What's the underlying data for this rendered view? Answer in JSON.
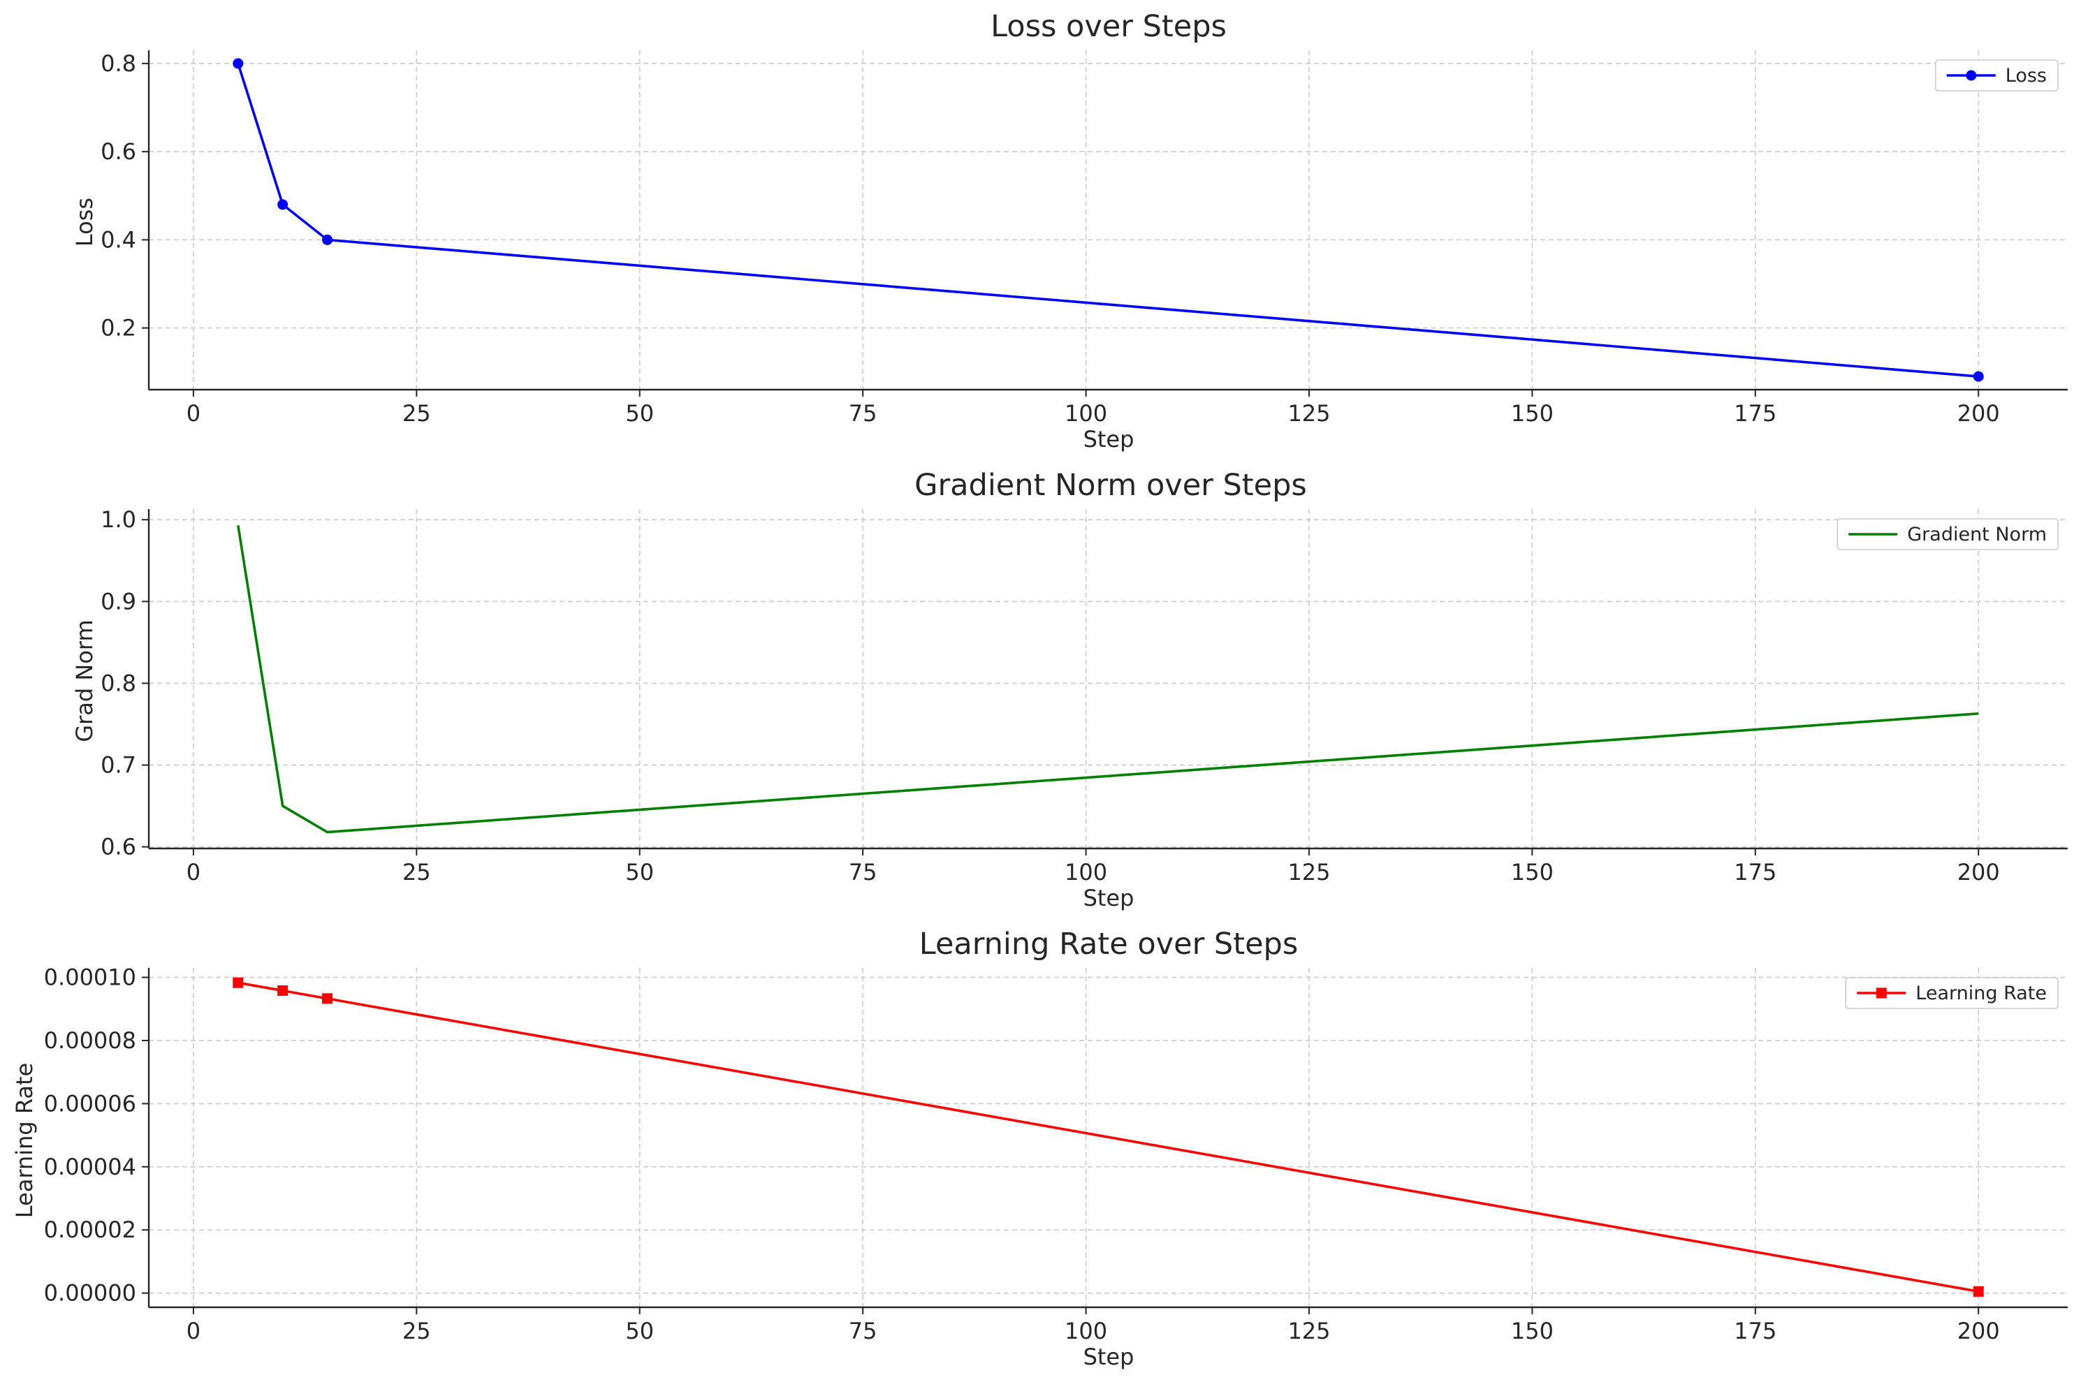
{
  "chart_data": [
    {
      "type": "line",
      "title": "Loss over Steps",
      "xlabel": "Step",
      "ylabel": "Loss",
      "xlim": [
        -5,
        210
      ],
      "ylim": [
        0.06,
        0.83
      ],
      "xticks": [
        0,
        25,
        50,
        75,
        100,
        125,
        150,
        175,
        200
      ],
      "xtick_labels": [
        "0",
        "25",
        "50",
        "75",
        "100",
        "125",
        "150",
        "175",
        "200"
      ],
      "yticks": [
        0.2,
        0.4,
        0.6,
        0.8
      ],
      "ytick_labels": [
        "0.2",
        "0.4",
        "0.6",
        "0.8"
      ],
      "grid": true,
      "legend_position": "top-right",
      "series": [
        {
          "name": "Loss",
          "color": "#0000ff",
          "marker": "circle",
          "x": [
            5,
            10,
            15,
            200
          ],
          "y": [
            0.8,
            0.48,
            0.4,
            0.09
          ]
        }
      ]
    },
    {
      "type": "line",
      "title": "Gradient Norm over Steps",
      "xlabel": "Step",
      "ylabel": "Grad Norm",
      "xlim": [
        -5,
        210
      ],
      "ylim": [
        0.598,
        1.013
      ],
      "xticks": [
        0,
        25,
        50,
        75,
        100,
        125,
        150,
        175,
        200
      ],
      "xtick_labels": [
        "0",
        "25",
        "50",
        "75",
        "100",
        "125",
        "150",
        "175",
        "200"
      ],
      "yticks": [
        0.6,
        0.7,
        0.8,
        0.9,
        1.0
      ],
      "ytick_labels": [
        "0.6",
        "0.7",
        "0.8",
        "0.9",
        "1.0"
      ],
      "grid": true,
      "legend_position": "top-right",
      "series": [
        {
          "name": "Gradient Norm",
          "color": "#008000",
          "marker": "none",
          "x": [
            5,
            10,
            15,
            200
          ],
          "y": [
            0.993,
            0.65,
            0.618,
            0.763
          ]
        }
      ]
    },
    {
      "type": "line",
      "title": "Learning Rate over Steps",
      "xlabel": "Step",
      "ylabel": "Learning Rate",
      "xlim": [
        -5,
        210
      ],
      "ylim": [
        -4.5e-06,
        0.000103
      ],
      "xticks": [
        0,
        25,
        50,
        75,
        100,
        125,
        150,
        175,
        200
      ],
      "xtick_labels": [
        "0",
        "25",
        "50",
        "75",
        "100",
        "125",
        "150",
        "175",
        "200"
      ],
      "yticks": [
        0,
        2e-05,
        4e-05,
        6e-05,
        8e-05,
        0.0001
      ],
      "ytick_labels": [
        "0.00000",
        "0.00002",
        "0.00004",
        "0.00006",
        "0.00008",
        "0.00010"
      ],
      "grid": true,
      "legend_position": "top-right",
      "series": [
        {
          "name": "Learning Rate",
          "color": "#ff0000",
          "marker": "square",
          "x": [
            5,
            10,
            15,
            200
          ],
          "y": [
            9.83e-05,
            9.58e-05,
            9.33e-05,
            5e-07
          ]
        }
      ]
    }
  ]
}
